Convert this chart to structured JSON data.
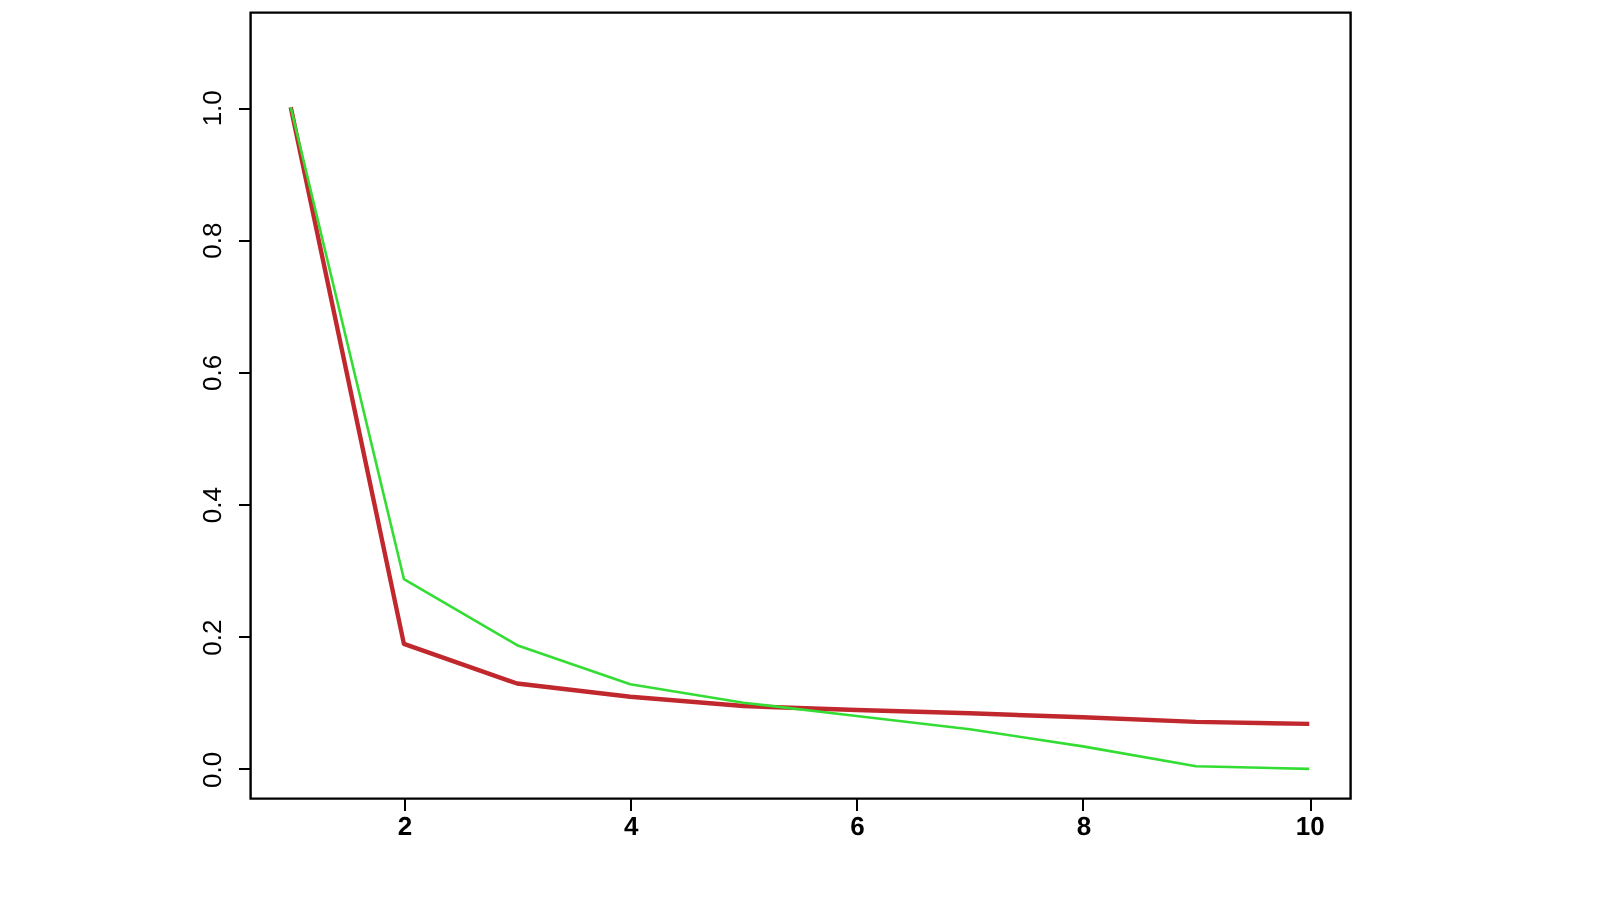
{
  "chart_data": {
    "type": "line",
    "x": [
      1,
      2,
      3,
      4,
      5,
      6,
      7,
      8,
      9,
      10
    ],
    "series": [
      {
        "color": "#c0282d",
        "values": [
          1.0,
          0.189,
          0.129,
          0.109,
          0.095,
          0.089,
          0.084,
          0.078,
          0.071,
          0.068
        ]
      },
      {
        "color": "#33dd33",
        "values": [
          1.0,
          0.287,
          0.187,
          0.128,
          0.1,
          0.08,
          0.06,
          0.034,
          0.004,
          0.0
        ]
      }
    ],
    "xlim": [
      0.64,
      10.36
    ],
    "xticks": [
      2,
      4,
      6,
      8,
      10
    ],
    "ylim": [
      -0.044,
      1.144
    ],
    "yticks": [
      {
        "value": 0,
        "label": "0.0"
      },
      {
        "value": 0.2,
        "label": "0.2"
      },
      {
        "value": 0.4,
        "label": "0.4"
      },
      {
        "value": 0.6,
        "label": "0.6"
      },
      {
        "value": 0.8,
        "label": "0.8"
      },
      {
        "value": 1.0,
        "label": "1.0"
      }
    ],
    "grid": false,
    "marker": "none",
    "line_style": "solid"
  }
}
